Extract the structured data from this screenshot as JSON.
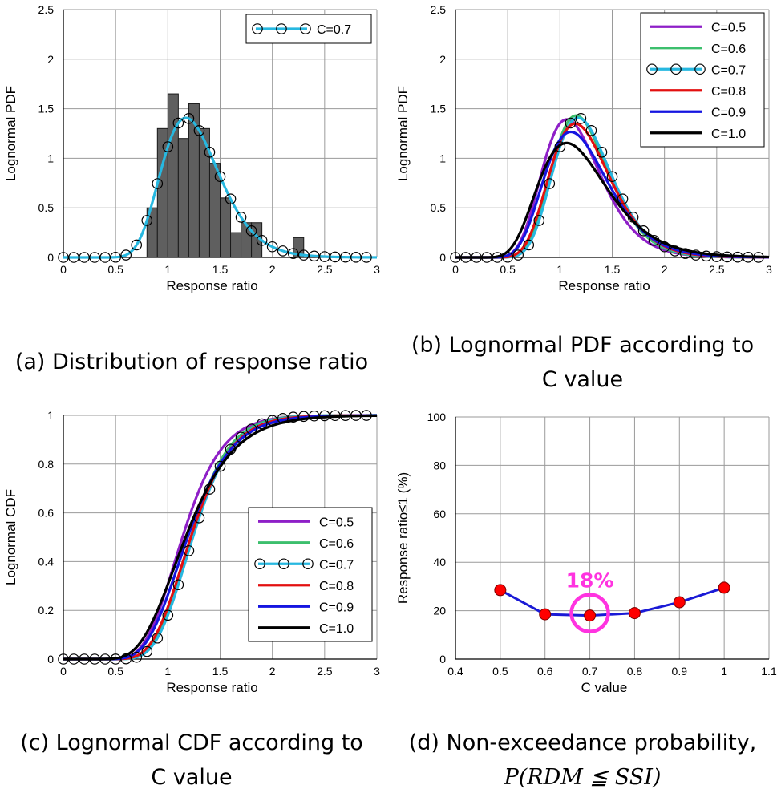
{
  "chart_data": [
    {
      "id": "a",
      "type": "bar",
      "title": "",
      "xlabel": "Response ratio",
      "ylabel": "Lognormal PDF",
      "xlim": [
        0,
        3
      ],
      "ylim": [
        0,
        2.5
      ],
      "xticks": [
        "0",
        "0.5",
        "1",
        "1.5",
        "2",
        "2.5",
        "3"
      ],
      "yticks": [
        "0",
        "0.5",
        "1",
        "1.5",
        "2",
        "2.5"
      ],
      "histogram": {
        "bin_width": 0.1,
        "bin_starts": [
          0.8,
          0.9,
          1.0,
          1.1,
          1.2,
          1.3,
          1.4,
          1.5,
          1.6,
          1.7,
          1.8,
          2.2
        ],
        "values": [
          0.5,
          1.3,
          1.65,
          1.2,
          1.55,
          1.3,
          0.95,
          0.6,
          0.25,
          0.35,
          0.35,
          0.2
        ]
      },
      "series": [
        {
          "name": "C=0.7",
          "color": "#27b8e0",
          "marker": "circle",
          "median": 1.24,
          "sigma": 0.235
        }
      ],
      "legend": [
        "C=0.7"
      ],
      "legend_position": "top-right"
    },
    {
      "id": "b",
      "type": "line",
      "title": "",
      "xlabel": "Response ratio",
      "ylabel": "Lognormal PDF",
      "xlim": [
        0,
        3
      ],
      "ylim": [
        0,
        2.5
      ],
      "xticks": [
        "0",
        "0.5",
        "1",
        "1.5",
        "2",
        "2.5",
        "3"
      ],
      "yticks": [
        "0",
        "0.5",
        "1",
        "1.5",
        "2",
        "2.5"
      ],
      "series": [
        {
          "name": "C=0.5",
          "color": "#8e1fc7",
          "median": 1.14,
          "sigma": 0.26
        },
        {
          "name": "C=0.6",
          "color": "#3cbf6d",
          "median": 1.22,
          "sigma": 0.235
        },
        {
          "name": "C=0.7",
          "color": "#27b8e0",
          "marker": "circle",
          "median": 1.24,
          "sigma": 0.235
        },
        {
          "name": "C=0.8",
          "color": "#e31010",
          "median": 1.22,
          "sigma": 0.25
        },
        {
          "name": "C=0.9",
          "color": "#1515e0",
          "median": 1.19,
          "sigma": 0.275
        },
        {
          "name": "C=1.0",
          "color": "#000000",
          "median": 1.17,
          "sigma": 0.31
        }
      ],
      "legend": [
        "C=0.5",
        "C=0.6",
        "C=0.7",
        "C=0.8",
        "C=0.9",
        "C=1.0"
      ],
      "legend_position": "top-right"
    },
    {
      "id": "c",
      "type": "line",
      "title": "",
      "xlabel": "Response ratio",
      "ylabel": "Lognormal CDF",
      "xlim": [
        0,
        3
      ],
      "ylim": [
        0,
        1
      ],
      "xticks": [
        "0",
        "0.5",
        "1",
        "1.5",
        "2",
        "2.5",
        "3"
      ],
      "yticks": [
        "0",
        "0.2",
        "0.4",
        "0.6",
        "0.8",
        "1"
      ],
      "series": [
        {
          "name": "C=0.5",
          "color": "#8e1fc7",
          "median": 1.14,
          "sigma": 0.26
        },
        {
          "name": "C=0.6",
          "color": "#3cbf6d",
          "median": 1.22,
          "sigma": 0.235
        },
        {
          "name": "C=0.7",
          "color": "#27b8e0",
          "marker": "circle",
          "median": 1.24,
          "sigma": 0.235
        },
        {
          "name": "C=0.8",
          "color": "#e31010",
          "median": 1.22,
          "sigma": 0.25
        },
        {
          "name": "C=0.9",
          "color": "#1515e0",
          "median": 1.19,
          "sigma": 0.275
        },
        {
          "name": "C=1.0",
          "color": "#000000",
          "median": 1.17,
          "sigma": 0.31
        }
      ],
      "legend": [
        "C=0.5",
        "C=0.6",
        "C=0.7",
        "C=0.8",
        "C=0.9",
        "C=1.0"
      ],
      "legend_position": "bottom-right"
    },
    {
      "id": "d",
      "type": "line",
      "title": "",
      "xlabel": "C value",
      "ylabel": "Response ratio≤1  (%)",
      "xlim": [
        0.4,
        1.1
      ],
      "ylim": [
        0,
        100
      ],
      "xticks": [
        "0.4",
        "0.5",
        "0.6",
        "0.7",
        "0.8",
        "0.9",
        "1",
        "1.1"
      ],
      "yticks": [
        "0",
        "20",
        "40",
        "60",
        "80",
        "100"
      ],
      "series": [
        {
          "name": "P(RDM ≤ SSI)",
          "color": "#1a1ad6",
          "marker_color": "#ff0000",
          "x": [
            0.5,
            0.6,
            0.7,
            0.8,
            0.9,
            1.0
          ],
          "y": [
            28.5,
            18.5,
            18,
            19,
            23.5,
            29.5
          ]
        }
      ],
      "annotation": {
        "text": "18%",
        "x": 0.7,
        "y": 18,
        "color": "#ff33e0"
      }
    }
  ],
  "captions": {
    "a": "(a) Distribution of response ratio",
    "b_line1": "(b) Lognormal PDF according to",
    "b_line2": "C value",
    "c_line1": "(c) Lognormal CDF according to",
    "c_line2": "C value",
    "d_line1": "(d) Non-exceedance probability,",
    "d_line2": "P(RDM ≦ SSI)"
  }
}
